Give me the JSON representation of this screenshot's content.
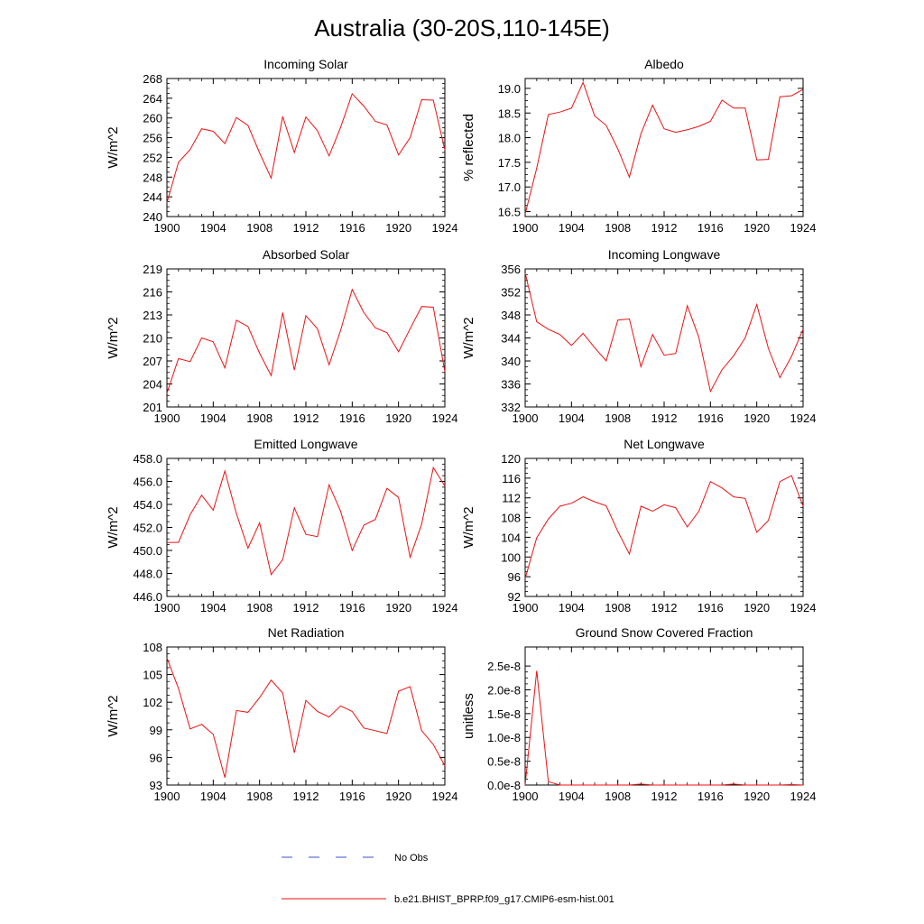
{
  "figure": {
    "title": "Australia (30-20S,110-145E)"
  },
  "legend": {
    "items": [
      {
        "label": "No Obs",
        "color": "#3355cc",
        "style": "dashed"
      },
      {
        "label": "b.e21.BHIST_BPRP.f09_g17.CMIP6-esm-hist.001",
        "color": "#ee1111",
        "style": "solid"
      }
    ]
  },
  "series_color": "#ee1111",
  "chart_data": [
    {
      "type": "line",
      "title": "Incoming Solar",
      "ylabel": "W/m^2",
      "xlim": [
        1900,
        1924
      ],
      "ylim": [
        240,
        268
      ],
      "xticks": [
        1900,
        1904,
        1908,
        1912,
        1916,
        1920,
        1924
      ],
      "yticks": [
        240,
        244,
        248,
        252,
        256,
        260,
        264,
        268
      ],
      "ytick_labels": [
        "240",
        "244",
        "248",
        "252",
        "256",
        "260",
        "264",
        "268"
      ],
      "x": [
        1900,
        1901,
        1902,
        1903,
        1904,
        1905,
        1906,
        1907,
        1908,
        1909,
        1910,
        1911,
        1912,
        1913,
        1914,
        1915,
        1916,
        1917,
        1918,
        1919,
        1920,
        1921,
        1922,
        1923,
        1924
      ],
      "series": [
        {
          "name": "b.e21.BHIST_BPRP.f09_g17.CMIP6-esm-hist.001",
          "values": [
            242.8,
            251.0,
            253.6,
            257.8,
            257.3,
            254.8,
            260.1,
            258.5,
            252.9,
            247.8,
            260.3,
            253.0,
            260.2,
            257.4,
            252.3,
            258.1,
            264.9,
            262.4,
            259.3,
            258.6,
            252.5,
            256.0,
            263.7,
            263.6,
            253.5
          ]
        }
      ]
    },
    {
      "type": "line",
      "title": "Albedo",
      "ylabel": "% reflected",
      "xlim": [
        1900,
        1924
      ],
      "ylim": [
        16.4,
        19.2
      ],
      "xticks": [
        1900,
        1904,
        1908,
        1912,
        1916,
        1920,
        1924
      ],
      "yticks": [
        16.5,
        17.0,
        17.5,
        18.0,
        18.5,
        19.0
      ],
      "ytick_labels": [
        "16.5",
        "17.0",
        "17.5",
        "18.0",
        "18.5",
        "19.0"
      ],
      "x": [
        1900,
        1901,
        1902,
        1903,
        1904,
        1905,
        1906,
        1907,
        1908,
        1909,
        1910,
        1911,
        1912,
        1913,
        1914,
        1915,
        1916,
        1917,
        1918,
        1919,
        1920,
        1921,
        1922,
        1923,
        1924
      ],
      "series": [
        {
          "name": "b.e21.BHIST_BPRP.f09_g17.CMIP6-esm-hist.001",
          "values": [
            16.45,
            17.38,
            18.47,
            18.52,
            18.6,
            19.12,
            18.44,
            18.25,
            17.77,
            17.2,
            18.08,
            18.66,
            18.18,
            18.11,
            18.16,
            18.23,
            18.33,
            18.76,
            18.6,
            18.6,
            17.55,
            17.56,
            18.83,
            18.85,
            18.98
          ]
        }
      ]
    },
    {
      "type": "line",
      "title": "Absorbed Solar",
      "ylabel": "W/m^2",
      "xlim": [
        1900,
        1924
      ],
      "ylim": [
        201,
        219
      ],
      "xticks": [
        1900,
        1904,
        1908,
        1912,
        1916,
        1920,
        1924
      ],
      "yticks": [
        201,
        204,
        207,
        210,
        213,
        216,
        219
      ],
      "ytick_labels": [
        "201",
        "204",
        "207",
        "210",
        "213",
        "216",
        "219"
      ],
      "x": [
        1900,
        1901,
        1902,
        1903,
        1904,
        1905,
        1906,
        1907,
        1908,
        1909,
        1910,
        1911,
        1912,
        1913,
        1914,
        1915,
        1916,
        1917,
        1918,
        1919,
        1920,
        1921,
        1922,
        1923,
        1924
      ],
      "series": [
        {
          "name": "b.e21.BHIST_BPRP.f09_g17.CMIP6-esm-hist.001",
          "values": [
            202.8,
            207.3,
            206.9,
            210.0,
            209.5,
            206.1,
            212.3,
            211.5,
            208.0,
            205.1,
            213.3,
            205.8,
            212.9,
            211.2,
            206.5,
            211.0,
            216.3,
            213.3,
            211.3,
            210.7,
            208.2,
            211.2,
            214.1,
            214.0,
            205.6
          ]
        }
      ]
    },
    {
      "type": "line",
      "title": "Incoming Longwave",
      "ylabel": "W/m^2",
      "xlim": [
        1900,
        1924
      ],
      "ylim": [
        332,
        356
      ],
      "xticks": [
        1900,
        1904,
        1908,
        1912,
        1916,
        1920,
        1924
      ],
      "yticks": [
        332,
        336,
        340,
        344,
        348,
        352,
        356
      ],
      "ytick_labels": [
        "332",
        "336",
        "340",
        "344",
        "348",
        "352",
        "356"
      ],
      "x": [
        1900,
        1901,
        1902,
        1903,
        1904,
        1905,
        1906,
        1907,
        1908,
        1909,
        1910,
        1911,
        1912,
        1913,
        1914,
        1915,
        1916,
        1917,
        1918,
        1919,
        1920,
        1921,
        1922,
        1923,
        1924
      ],
      "series": [
        {
          "name": "b.e21.BHIST_BPRP.f09_g17.CMIP6-esm-hist.001",
          "values": [
            355.3,
            346.8,
            345.5,
            344.6,
            342.7,
            344.8,
            342.3,
            340.0,
            347.1,
            347.3,
            339.0,
            344.6,
            341.0,
            341.3,
            349.6,
            344.1,
            334.7,
            338.5,
            340.9,
            344.0,
            349.8,
            342.2,
            337.1,
            340.8,
            345.5
          ]
        }
      ]
    },
    {
      "type": "line",
      "title": "Emitted Longwave",
      "ylabel": "W/m^2",
      "xlim": [
        1900,
        1924
      ],
      "ylim": [
        446,
        458
      ],
      "xticks": [
        1900,
        1904,
        1908,
        1912,
        1916,
        1920,
        1924
      ],
      "yticks": [
        446,
        448,
        450,
        452,
        454,
        456,
        458
      ],
      "ytick_labels": [
        "446.0",
        "448.0",
        "450.0",
        "452.0",
        "454.0",
        "456.0",
        "458.0"
      ],
      "x": [
        1900,
        1901,
        1902,
        1903,
        1904,
        1905,
        1906,
        1907,
        1908,
        1909,
        1910,
        1911,
        1912,
        1913,
        1914,
        1915,
        1916,
        1917,
        1918,
        1919,
        1920,
        1921,
        1922,
        1923,
        1924
      ],
      "series": [
        {
          "name": "b.e21.BHIST_BPRP.f09_g17.CMIP6-esm-hist.001",
          "values": [
            450.7,
            450.7,
            453.1,
            454.8,
            453.5,
            456.9,
            453.2,
            450.2,
            452.4,
            447.9,
            449.2,
            453.7,
            451.4,
            451.2,
            455.7,
            453.4,
            450.0,
            452.2,
            452.7,
            455.4,
            454.6,
            449.4,
            452.3,
            457.2,
            455.6
          ]
        }
      ]
    },
    {
      "type": "line",
      "title": "Net Longwave",
      "ylabel": "W/m^2",
      "xlim": [
        1900,
        1924
      ],
      "ylim": [
        92,
        120
      ],
      "xticks": [
        1900,
        1904,
        1908,
        1912,
        1916,
        1920,
        1924
      ],
      "yticks": [
        92,
        96,
        100,
        104,
        108,
        112,
        116,
        120
      ],
      "ytick_labels": [
        "92",
        "96",
        "100",
        "104",
        "108",
        "112",
        "116",
        "120"
      ],
      "x": [
        1900,
        1901,
        1902,
        1903,
        1904,
        1905,
        1906,
        1907,
        1908,
        1909,
        1910,
        1911,
        1912,
        1913,
        1914,
        1915,
        1916,
        1917,
        1918,
        1919,
        1920,
        1921,
        1922,
        1923,
        1924
      ],
      "series": [
        {
          "name": "b.e21.BHIST_BPRP.f09_g17.CMIP6-esm-hist.001",
          "values": [
            95.6,
            103.9,
            107.7,
            110.3,
            110.9,
            112.2,
            111.2,
            110.4,
            105.2,
            100.6,
            110.3,
            109.3,
            110.6,
            110.0,
            106.1,
            109.3,
            115.3,
            114.0,
            112.2,
            111.9,
            105.0,
            107.4,
            115.3,
            116.5,
            110.3
          ]
        }
      ]
    },
    {
      "type": "line",
      "title": "Net Radiation",
      "ylabel": "W/m^2",
      "xlim": [
        1900,
        1924
      ],
      "ylim": [
        93,
        108
      ],
      "xticks": [
        1900,
        1904,
        1908,
        1912,
        1916,
        1920,
        1924
      ],
      "yticks": [
        93,
        96,
        99,
        102,
        105,
        108
      ],
      "ytick_labels": [
        "93",
        "96",
        "99",
        "102",
        "105",
        "108"
      ],
      "x": [
        1900,
        1901,
        1902,
        1903,
        1904,
        1905,
        1906,
        1907,
        1908,
        1909,
        1910,
        1911,
        1912,
        1913,
        1914,
        1915,
        1916,
        1917,
        1918,
        1919,
        1920,
        1921,
        1922,
        1923,
        1924
      ],
      "series": [
        {
          "name": "b.e21.BHIST_BPRP.f09_g17.CMIP6-esm-hist.001",
          "values": [
            106.8,
            103.5,
            99.1,
            99.6,
            98.5,
            93.8,
            101.1,
            100.9,
            102.5,
            104.4,
            103.0,
            96.5,
            102.2,
            101.0,
            100.4,
            101.6,
            101.0,
            99.2,
            98.9,
            98.6,
            103.2,
            103.7,
            98.9,
            97.4,
            95.1
          ]
        }
      ]
    },
    {
      "type": "line",
      "title": "Ground Snow Covered Fraction",
      "ylabel": "unitless",
      "xlim": [
        1900,
        1924
      ],
      "ylim": [
        0,
        2.9e-08
      ],
      "xticks": [
        1900,
        1904,
        1908,
        1912,
        1916,
        1920,
        1924
      ],
      "yticks": [
        0,
        5e-09,
        1e-08,
        1.5e-08,
        2e-08,
        2.5e-08
      ],
      "ytick_labels": [
        "0.0e-8",
        "0.5e-8",
        "1.0e-8",
        "1.5e-8",
        "2.0e-8",
        "2.5e-8"
      ],
      "x": [
        1900,
        1901,
        1902,
        1903,
        1904,
        1905,
        1906,
        1907,
        1908,
        1909,
        1910,
        1911,
        1912,
        1913,
        1914,
        1915,
        1916,
        1917,
        1918,
        1919,
        1920,
        1921,
        1922,
        1923,
        1924
      ],
      "series": [
        {
          "name": "b.e21.BHIST_BPRP.f09_g17.CMIP6-esm-hist.001",
          "values": [
            0,
            2.4e-08,
            7e-10,
            0,
            0,
            0,
            0,
            0,
            0,
            0,
            2e-10,
            0,
            0,
            0,
            0,
            0,
            0,
            0,
            2e-10,
            0,
            0,
            0,
            0,
            1e-10,
            0
          ]
        }
      ]
    }
  ]
}
